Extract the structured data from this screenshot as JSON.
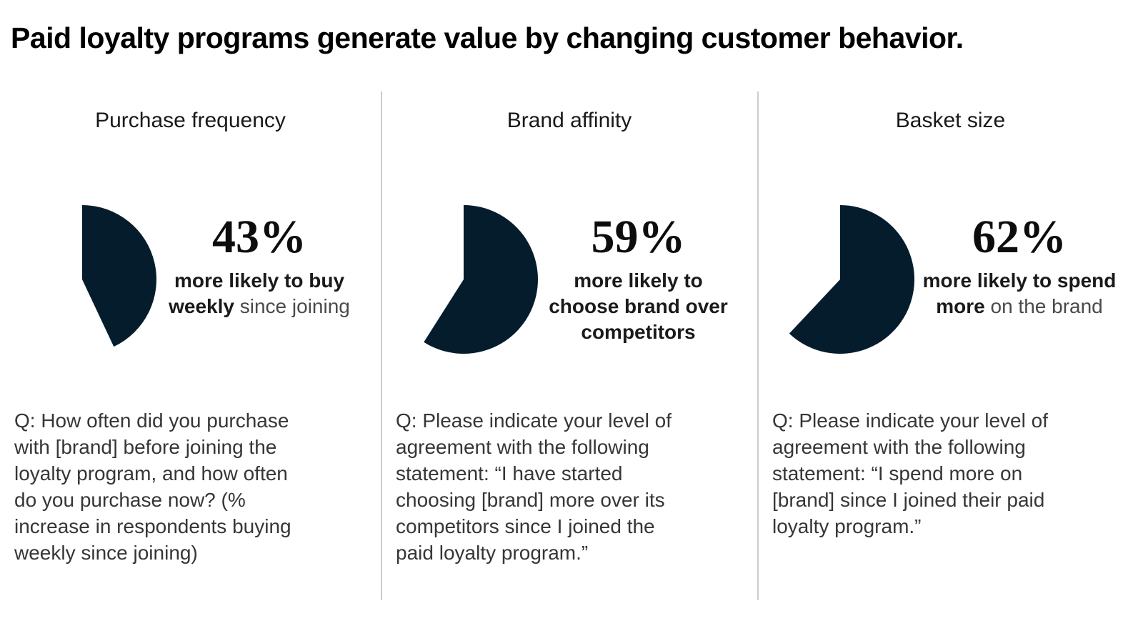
{
  "title": "Paid loyalty programs generate value by changing customer behavior.",
  "colors": {
    "slice": "#051c2c",
    "background": "#ffffff",
    "divider": "#cccccc"
  },
  "chart_data": {
    "type": "pie",
    "layout": "three-panel infographic, one pie per panel",
    "pie_start": "12 o'clock, sweeping clockwise",
    "slice_color": "#051c2c",
    "remainder_color": "#ffffff",
    "charts": [
      {
        "heading": "Purchase frequency",
        "value_pct": 43,
        "display_value": "43%",
        "caption_lines": [
          [
            {
              "t": "more likely to buy",
              "b": true
            }
          ],
          [
            {
              "t": "weekly",
              "b": true
            },
            {
              "t": " since joining",
              "b": false
            }
          ]
        ],
        "question": "Q: How often did you purchase with [brand] before joining the loyalty program, and how often do you purchase now? (% increase in respondents buying weekly since joining)"
      },
      {
        "heading": "Brand affinity",
        "value_pct": 59,
        "display_value": "59%",
        "caption_lines": [
          [
            {
              "t": "more likely to",
              "b": true
            }
          ],
          [
            {
              "t": "choose brand over",
              "b": true
            }
          ],
          [
            {
              "t": "competitors",
              "b": true
            }
          ]
        ],
        "question": "Q: Please indicate your level of agreement with the following statement: “I have started choosing [brand] more over its competitors since I joined the paid loyalty program.”"
      },
      {
        "heading": "Basket size",
        "value_pct": 62,
        "display_value": "62%",
        "caption_lines": [
          [
            {
              "t": "more likely to spend",
              "b": true
            }
          ],
          [
            {
              "t": "more",
              "b": true
            },
            {
              "t": " on the brand",
              "b": false
            }
          ]
        ],
        "question": "Q: Please indicate your level of agreement with the following statement: “I spend more on [brand] since I joined their paid loyalty program.”"
      }
    ]
  }
}
